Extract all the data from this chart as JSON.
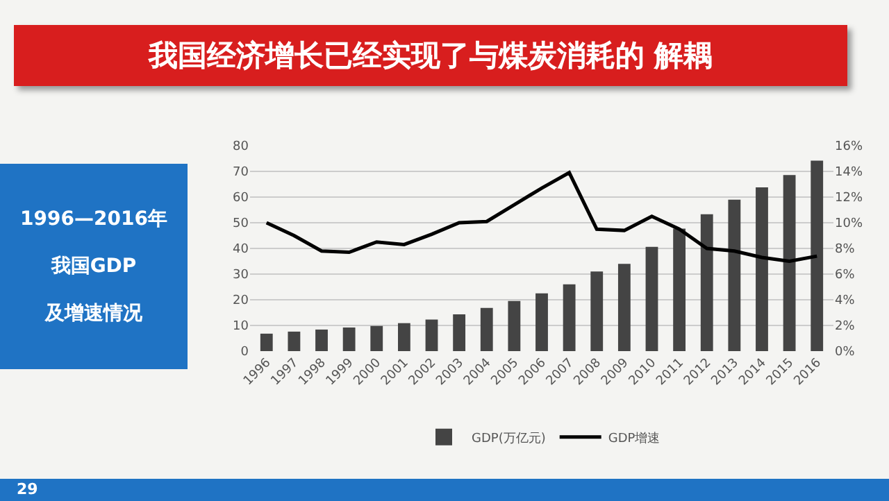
{
  "chart_data": {
    "type": "bar",
    "title": "我国经济增长已经实现了与煤炭消耗的 解耦",
    "subtitle": "1996—2016年",
    "annotations": [
      "我国GDP",
      "及增速情况",
      "29"
    ],
    "categories": [
      "1996",
      "1997",
      "1998",
      "1999",
      "2000",
      "2001",
      "2002",
      "2003",
      "2004",
      "2005",
      "2006",
      "2007",
      "2008",
      "2009",
      "2010",
      "2011",
      "2012",
      "2013",
      "2014",
      "2015",
      "2016"
    ],
    "series": [
      {
        "name": "GDP(万亿元)",
        "color": "#444444",
        "values": [
          6.8,
          7.6,
          8.4,
          9.2,
          9.8,
          10.9,
          12.3,
          14.3,
          16.8,
          19.5,
          22.5,
          26,
          31,
          34,
          40.6,
          47.7,
          53.3,
          59,
          63.8,
          68.6,
          74.2
        ]
      },
      {
        "name": "GDP增速",
        "type": "line",
        "axis": "y2",
        "color": "#000000",
        "values": [
          10,
          9,
          7.8,
          7.7,
          8.5,
          8.3,
          9.1,
          10,
          10.1,
          11.4,
          12.7,
          13.9,
          9.5,
          9.4,
          10.5,
          9.5,
          8,
          7.8,
          7.3,
          7,
          7.4
        ]
      }
    ],
    "ylim": [
      0,
      80
    ],
    "yticks": [
      0,
      10,
      20,
      30,
      40,
      50,
      60,
      70,
      80
    ],
    "y2lim": [
      0,
      16
    ],
    "y2ticks": [
      {
        "value": 0,
        "label": "0%"
      },
      {
        "value": 2,
        "label": "2%"
      },
      {
        "value": 4,
        "label": "4%"
      },
      {
        "value": 6,
        "label": "6%"
      },
      {
        "value": 8,
        "label": "8%"
      },
      {
        "value": 10,
        "label": "10%"
      },
      {
        "value": 12,
        "label": "12%"
      },
      {
        "value": 14,
        "label": "14%"
      },
      {
        "value": 16,
        "label": "16%"
      }
    ],
    "grid": "y",
    "legend": "bottom",
    "marker": "none",
    "line_style": "solid"
  }
}
